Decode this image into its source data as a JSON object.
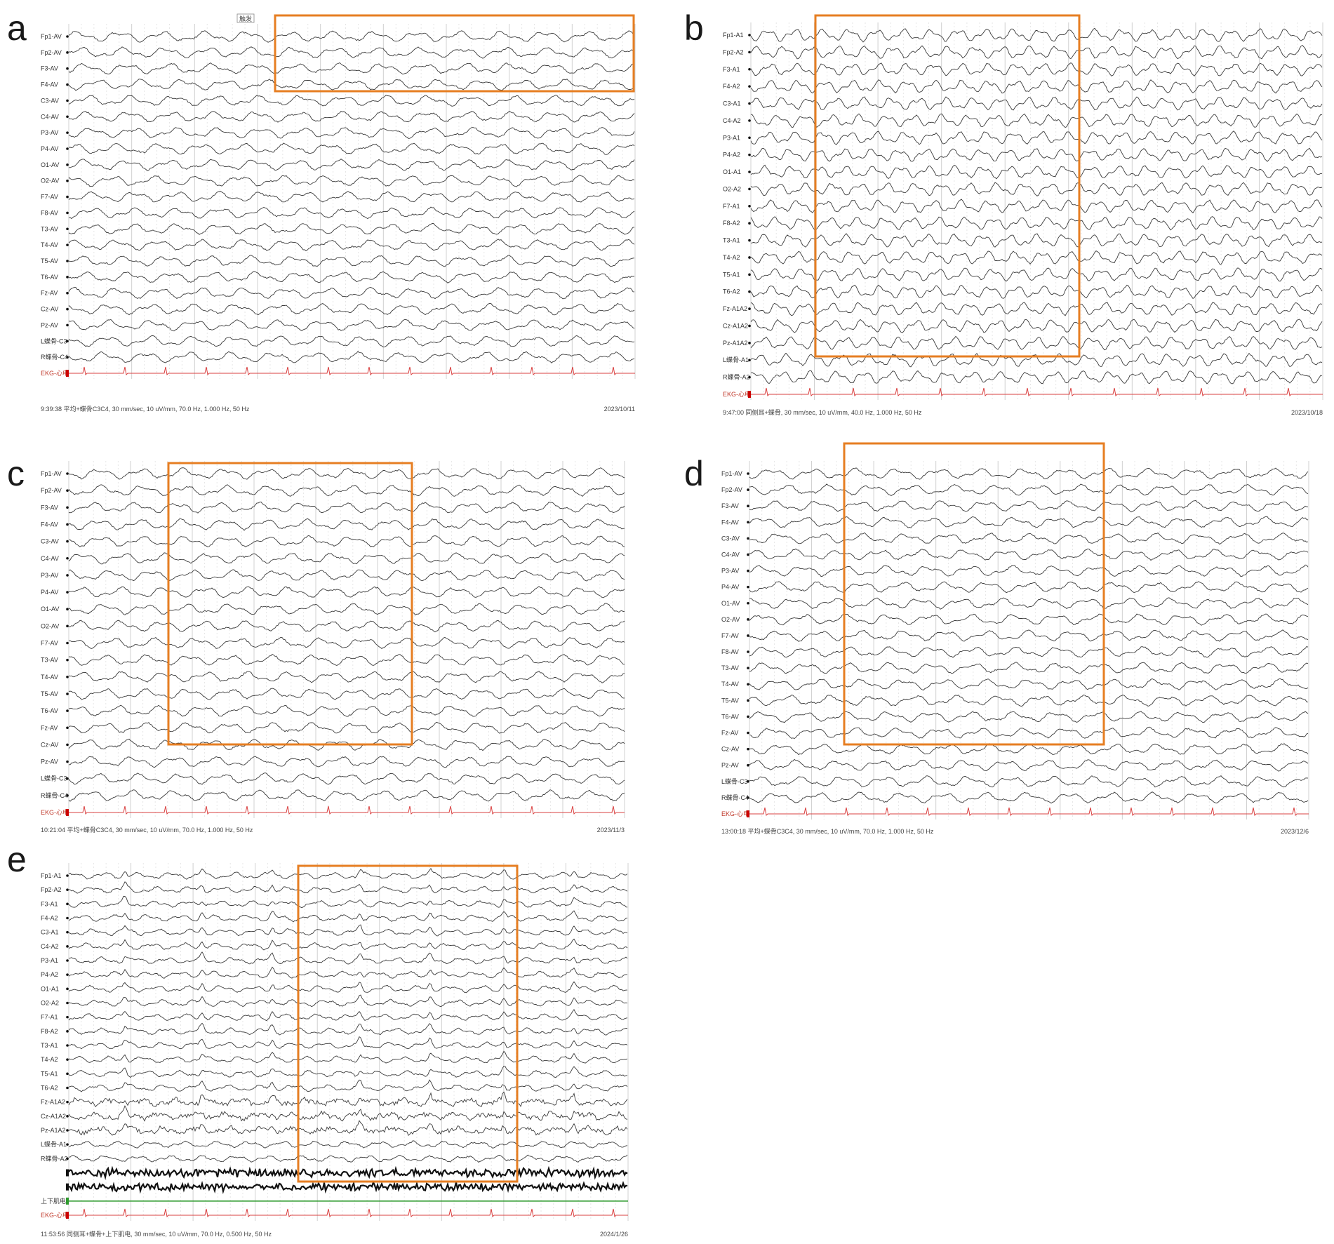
{
  "colors": {
    "trace": "#3a3a3a",
    "grid_major": "#d0d0d0",
    "grid_minor": "#e6e6e6",
    "highlight_box": "#e67e22",
    "ekg": "#d94040",
    "eog_green": "#2e9a2e",
    "marker_red": "#cc0000"
  },
  "panels": [
    {
      "letter": "a",
      "footer_left": "9:39:38 平均+蝶骨C3C4, 30 mm/sec, 10 uV/mm, 70.0 Hz, 1.000 Hz, 50 Hz",
      "footer_right": "2023/10/11",
      "event_tag": "触发",
      "channels": [
        "Fp1-AV",
        "Fp2-AV",
        "F3-AV",
        "F4-AV",
        "C3-AV",
        "C4-AV",
        "P3-AV",
        "P4-AV",
        "O1-AV",
        "O2-AV",
        "F7-AV",
        "F8-AV",
        "T3-AV",
        "T4-AV",
        "T5-AV",
        "T6-AV",
        "Fz-AV",
        "Cz-AV",
        "Pz-AV",
        "L蝶骨-C3",
        "R蝶骨-C4"
      ],
      "ekg_label": "EKG-心电"
    },
    {
      "letter": "b",
      "footer_left": "9:47:00 同侧耳+蝶骨, 30 mm/sec, 10 uV/mm, 40.0 Hz, 1.000 Hz, 50 Hz",
      "footer_right": "2023/10/18",
      "channels": [
        "Fp1-A1",
        "Fp2-A2",
        "F3-A1",
        "F4-A2",
        "C3-A1",
        "C4-A2",
        "P3-A1",
        "P4-A2",
        "O1-A1",
        "O2-A2",
        "F7-A1",
        "F8-A2",
        "T3-A1",
        "T4-A2",
        "T5-A1",
        "T6-A2",
        "Fz-A1A2",
        "Cz-A1A2",
        "Pz-A1A2",
        "L蝶骨-A1",
        "R蝶骨-A2"
      ],
      "ekg_label": "EKG-心电"
    },
    {
      "letter": "c",
      "footer_left": "10:21:04 平均+蝶骨C3C4, 30 mm/sec, 10 uV/mm, 70.0 Hz, 1.000 Hz, 50 Hz",
      "footer_right": "2023/11/3",
      "channels": [
        "Fp1-AV",
        "Fp2-AV",
        "F3-AV",
        "F4-AV",
        "C3-AV",
        "C4-AV",
        "P3-AV",
        "P4-AV",
        "O1-AV",
        "O2-AV",
        "F7-AV",
        "T3-AV",
        "T4-AV",
        "T5-AV",
        "T6-AV",
        "Fz-AV",
        "Cz-AV",
        "Pz-AV",
        "L蝶骨-C3",
        "R蝶骨-C4"
      ],
      "ekg_label": "EKG-心电"
    },
    {
      "letter": "d",
      "footer_left": "13:00:18 平均+蝶骨C3C4, 30 mm/sec, 10 uV/mm, 70.0 Hz, 1.000 Hz, 50 Hz",
      "footer_right": "2023/12/6",
      "channels": [
        "Fp1-AV",
        "Fp2-AV",
        "F3-AV",
        "F4-AV",
        "C3-AV",
        "C4-AV",
        "P3-AV",
        "P4-AV",
        "O1-AV",
        "O2-AV",
        "F7-AV",
        "F8-AV",
        "T3-AV",
        "T4-AV",
        "T5-AV",
        "T6-AV",
        "Fz-AV",
        "Cz-AV",
        "Pz-AV",
        "L蝶骨-C3",
        "R蝶骨-C4"
      ],
      "ekg_label": "EKG-心电"
    },
    {
      "letter": "e",
      "footer_left": "11:53:56 同侧耳+蝶骨+上下肌电, 30 mm/sec, 10 uV/mm, 70.0 Hz, 0.500 Hz, 50 Hz",
      "footer_right": "2024/1/26",
      "channels": [
        "Fp1-A1",
        "Fp2-A2",
        "F3-A1",
        "F4-A2",
        "C3-A1",
        "C4-A2",
        "P3-A1",
        "P4-A2",
        "O1-A1",
        "O2-A2",
        "F7-A1",
        "F8-A2",
        "T3-A1",
        "T4-A2",
        "T5-A1",
        "T6-A2",
        "Fz-A1A2",
        "Cz-A1A2",
        "Pz-A1A2",
        "L蝶骨-A1",
        "R蝶骨-A2"
      ],
      "extra_label": "上下肌电",
      "ekg_label": "EKG-心电"
    }
  ]
}
